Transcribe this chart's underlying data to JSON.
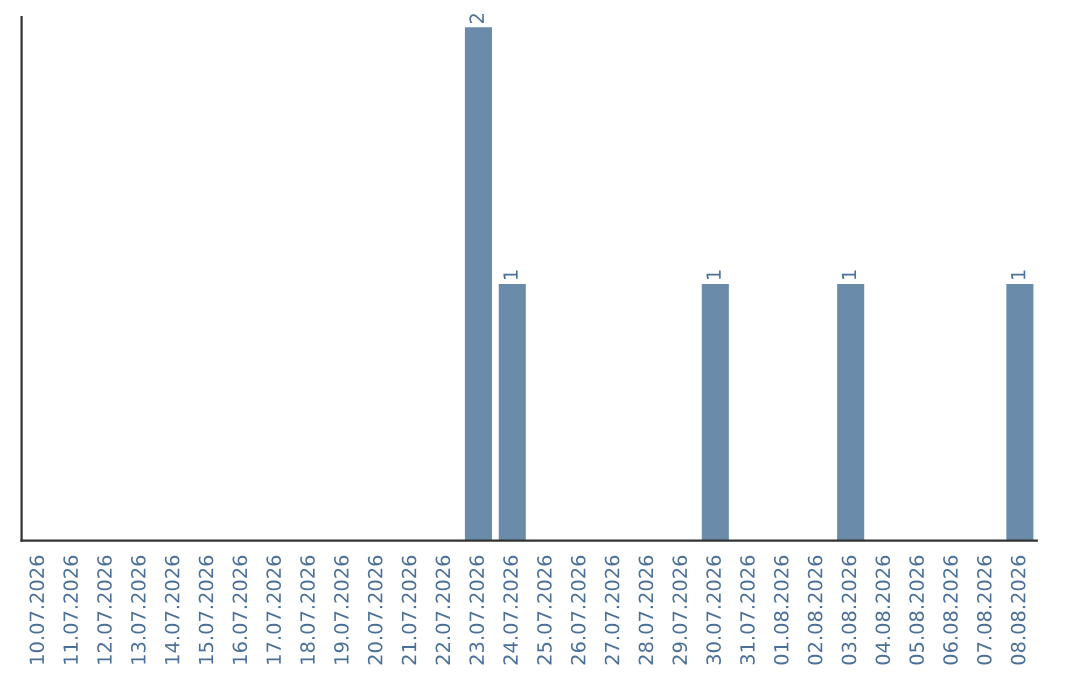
{
  "chart_data": {
    "type": "bar",
    "categories": [
      "10.07.2026",
      "11.07.2026",
      "12.07.2026",
      "13.07.2026",
      "14.07.2026",
      "15.07.2026",
      "16.07.2026",
      "17.07.2026",
      "18.07.2026",
      "19.07.2026",
      "20.07.2026",
      "21.07.2026",
      "22.07.2026",
      "23.07.2026",
      "24.07.2026",
      "25.07.2026",
      "26.07.2026",
      "27.07.2026",
      "28.07.2026",
      "29.07.2026",
      "30.07.2026",
      "31.07.2026",
      "01.08.2026",
      "02.08.2026",
      "03.08.2026",
      "04.08.2026",
      "05.08.2026",
      "06.08.2026",
      "07.08.2026",
      "08.08.2026"
    ],
    "values": [
      null,
      null,
      null,
      null,
      null,
      null,
      null,
      null,
      null,
      null,
      null,
      null,
      null,
      2,
      1,
      null,
      null,
      null,
      null,
      null,
      1,
      null,
      null,
      null,
      1,
      null,
      null,
      null,
      null,
      1
    ],
    "value_labels": [
      null,
      null,
      null,
      null,
      null,
      null,
      null,
      null,
      null,
      null,
      null,
      null,
      null,
      "2",
      "1",
      null,
      null,
      null,
      null,
      null,
      "1",
      null,
      null,
      null,
      "1",
      null,
      null,
      null,
      null,
      "1"
    ],
    "color": "#6a8caa",
    "tick_labels": "x",
    "grid": false,
    "legend": false
  }
}
